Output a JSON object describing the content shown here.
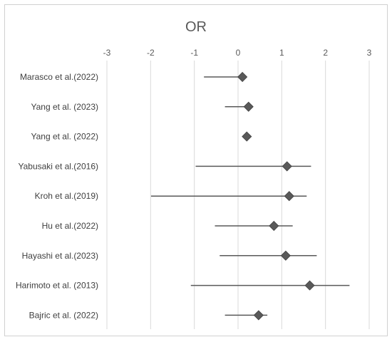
{
  "chart_data": {
    "type": "forest",
    "title": "OR",
    "x_ticks": [
      -3,
      -2,
      -1,
      0,
      1,
      2,
      3
    ],
    "xlim": [
      -3,
      3
    ],
    "grid": "vertical",
    "axis_position": "top",
    "studies": [
      {
        "label": "Marasco et al.(2022)",
        "estimate": 0.1,
        "lower": -0.78,
        "upper": 0.1
      },
      {
        "label": "Yang et al. (2023)",
        "estimate": 0.24,
        "lower": -0.3,
        "upper": 0.24
      },
      {
        "label": "Yang et al. (2022)",
        "estimate": 0.2,
        "lower": 0.2,
        "upper": 0.2
      },
      {
        "label": "Yabusaki et al.(2016)",
        "estimate": 1.12,
        "lower": -0.97,
        "upper": 1.67
      },
      {
        "label": "Kroh et al.(2019)",
        "estimate": 1.17,
        "lower": -1.99,
        "upper": 1.57
      },
      {
        "label": "Hu et al.(2022)",
        "estimate": 0.82,
        "lower": -0.53,
        "upper": 1.25
      },
      {
        "label": "Hayashi et al.(2023)",
        "estimate": 1.09,
        "lower": -0.42,
        "upper": 1.8
      },
      {
        "label": "Harimoto et al. (2013)",
        "estimate": 1.64,
        "lower": -1.08,
        "upper": 2.55
      },
      {
        "label": "Bajric et al. (2022)",
        "estimate": 0.47,
        "lower": -0.3,
        "upper": 0.67
      }
    ]
  }
}
